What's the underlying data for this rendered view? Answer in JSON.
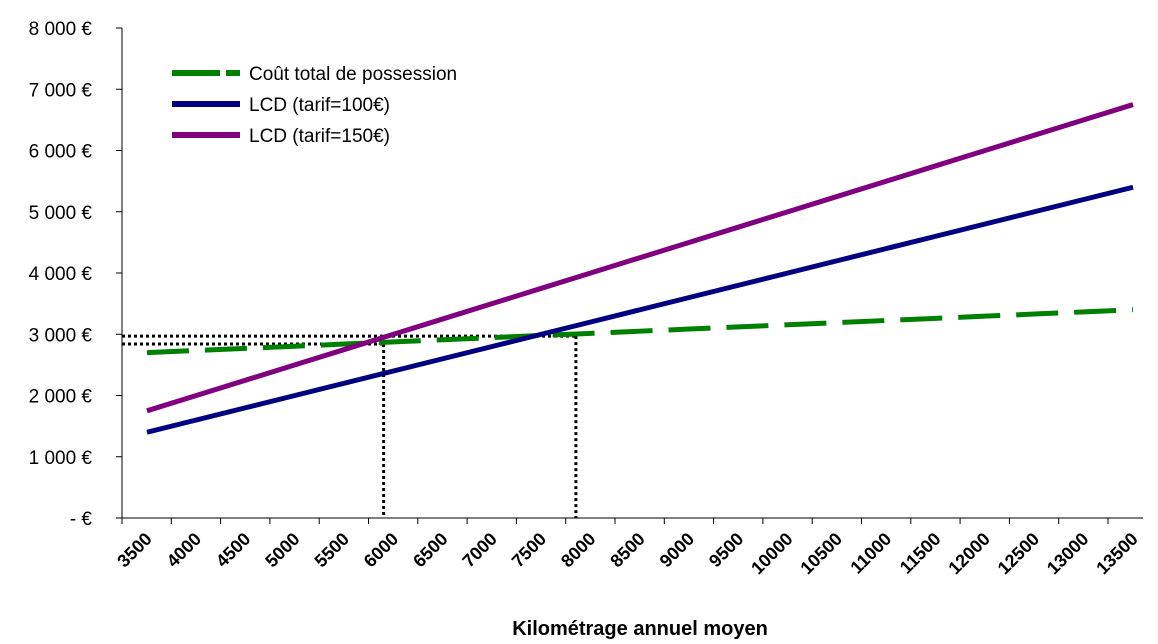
{
  "chart_data": {
    "type": "line",
    "title": "",
    "xlabel": "Kilométrage annuel moyen",
    "ylabel": "",
    "x": [
      3500,
      4000,
      4500,
      5000,
      5500,
      6000,
      6500,
      7000,
      7500,
      8000,
      8500,
      9000,
      9500,
      10000,
      10500,
      11000,
      11500,
      12000,
      12500,
      13000,
      13500
    ],
    "xlim": [
      3500,
      13500
    ],
    "ylim": [
      0,
      8000
    ],
    "y_ticks": [
      0,
      1000,
      2000,
      3000,
      4000,
      5000,
      6000,
      7000,
      8000
    ],
    "y_tick_labels": [
      "- €",
      "1 000 €",
      "2 000 €",
      "3 000 €",
      "4 000 €",
      "5 000 €",
      "6 000 €",
      "7 000 €",
      "8 000 €"
    ],
    "x_tick_labels": [
      "3500",
      "4000",
      "4500",
      "5000",
      "5500",
      "6000",
      "6500",
      "7000",
      "7500",
      "8000",
      "8500",
      "9000",
      "9500",
      "10000",
      "10500",
      "11000",
      "11500",
      "12000",
      "12500",
      "13000",
      "13500"
    ],
    "grid": false,
    "legend_position": "top-left",
    "series": [
      {
        "name": "Coût total de possession",
        "color": "#008000",
        "style": "dashed",
        "values": [
          2700,
          2735,
          2770,
          2805,
          2840,
          2875,
          2910,
          2945,
          2980,
          3015,
          3050,
          3085,
          3120,
          3155,
          3190,
          3225,
          3260,
          3295,
          3330,
          3365,
          3400
        ]
      },
      {
        "name": "LCD (tarif=100€)",
        "color": "#000080",
        "style": "solid",
        "values": [
          1400,
          1600,
          1800,
          2000,
          2200,
          2400,
          2600,
          2800,
          3000,
          3200,
          3400,
          3600,
          3800,
          4000,
          4200,
          4400,
          4600,
          4800,
          5000,
          5200,
          5400
        ]
      },
      {
        "name": "LCD (tarif=150€)",
        "color": "#800080",
        "style": "solid",
        "values": [
          1750,
          2000,
          2250,
          2500,
          2750,
          3000,
          3250,
          3500,
          3750,
          4000,
          4250,
          4500,
          4750,
          5000,
          5250,
          5500,
          5750,
          6000,
          6250,
          6500,
          6750
        ]
      }
    ],
    "reference_lines": [
      {
        "x": 5900,
        "y": 2840
      },
      {
        "x": 7850,
        "y": 2970
      }
    ]
  }
}
